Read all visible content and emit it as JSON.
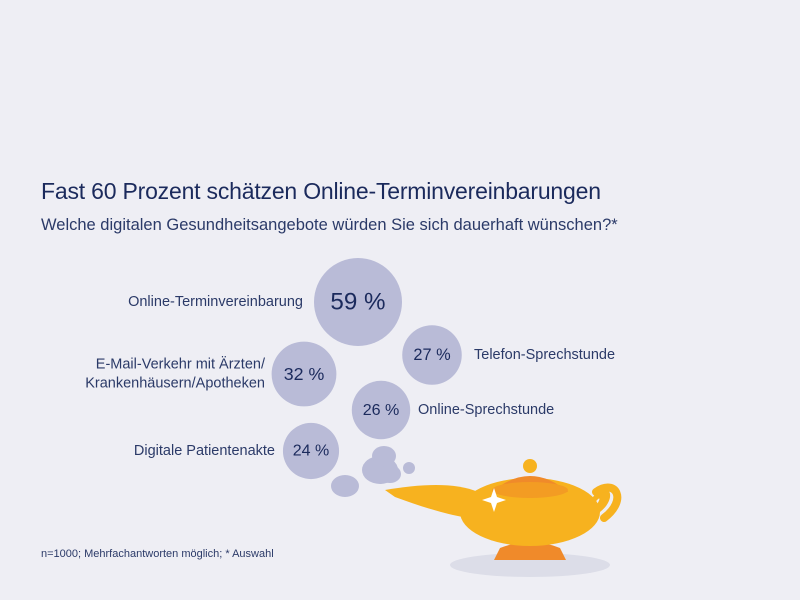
{
  "colors": {
    "background": "#eeeef4",
    "bubble": "#b9bbd7",
    "text_dark": "#1b2a5c",
    "lamp_gold": "#f7b21f",
    "lamp_orange": "#f08a2a"
  },
  "chart_data": {
    "type": "bubble",
    "title": "Fast 60 Prozent schätzen Online-Terminvereinbarungen",
    "subtitle": "Welche digitalen Gesundheitsangebote würden Sie sich dauerhaft wünschen?*",
    "footnote": "n=1000; Mehrfachantworten möglich; * Auswahl",
    "unit": "%",
    "items": [
      {
        "label": [
          "Online-Terminvereinbarung"
        ],
        "value": 59,
        "value_label": "59 %"
      },
      {
        "label": [
          "Telefon-Sprechstunde"
        ],
        "value": 27,
        "value_label": "27 %"
      },
      {
        "label": [
          "E-Mail-Verkehr mit Ärzten/",
          "Krankenhäusern/Apotheken"
        ],
        "value": 32,
        "value_label": "32 %"
      },
      {
        "label": [
          "Online-Sprechstunde"
        ],
        "value": 26,
        "value_label": "26 %"
      },
      {
        "label": [
          "Digitale Patientenakte"
        ],
        "value": 24,
        "value_label": "24 %"
      }
    ]
  }
}
